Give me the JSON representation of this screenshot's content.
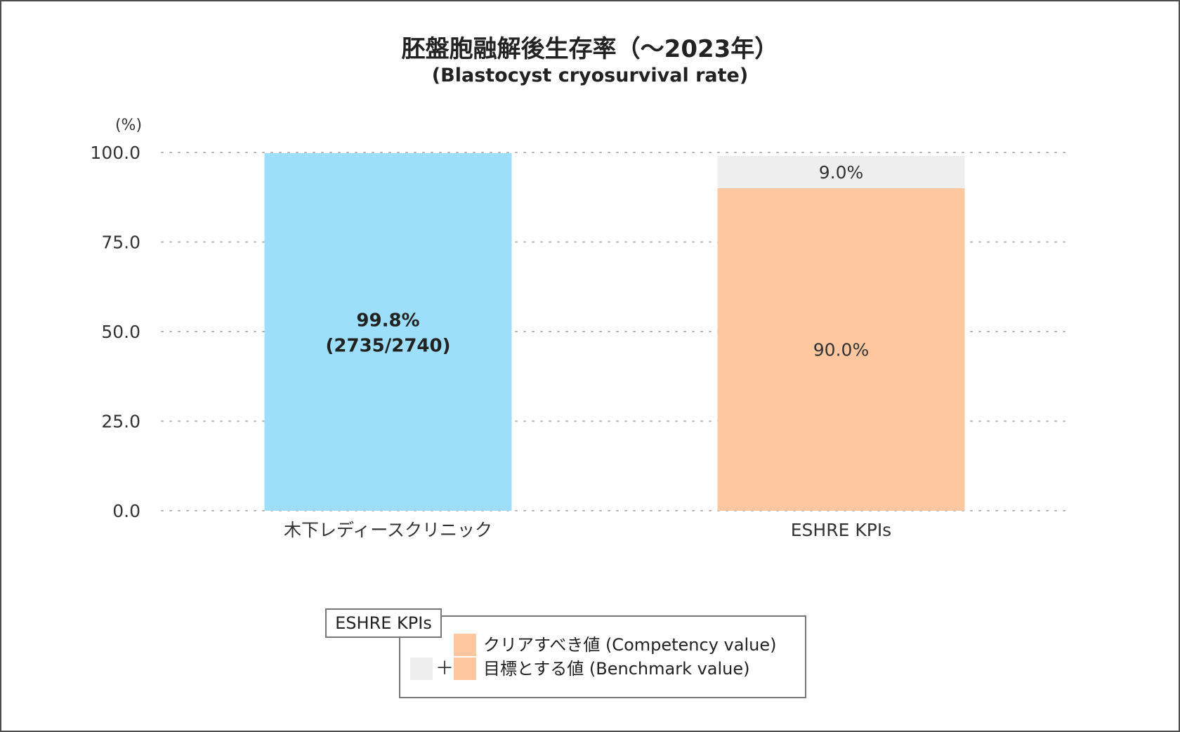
{
  "chart_data": {
    "type": "bar",
    "title": "胚盤胞融解後生存率（〜2023年）",
    "subtitle": "(Blastocyst cryosurvival rate)",
    "ylabel": "(%)",
    "ylim": [
      0,
      100
    ],
    "yticks": [
      "0.0",
      "25.0",
      "50.0",
      "75.0",
      "100.0"
    ],
    "grid": true,
    "categories": [
      "木下レディースクリニック",
      "ESHRE KPIs"
    ],
    "bars": [
      {
        "category": "木下レディースクリニック",
        "segments": [
          {
            "name": "clinic",
            "value": 99.8,
            "color": "#9ddffa",
            "label": "99.8%",
            "sublabel": "(2735/2740)",
            "bold": true
          }
        ]
      },
      {
        "category": "ESHRE KPIs",
        "segments": [
          {
            "name": "competency",
            "value": 90.0,
            "color": "#ffc7a0",
            "label": "90.0%",
            "sublabel": "",
            "bold": false
          },
          {
            "name": "benchmark-extra",
            "value": 9.0,
            "color": "#eeeeee",
            "label": "9.0%",
            "sublabel": "",
            "bold": false
          }
        ]
      }
    ]
  },
  "legend": {
    "tab_label": "ESHRE KPIs",
    "competency_label": "クリアすべき値 (Competency value)",
    "benchmark_label": "目標とする値 (Benchmark value)",
    "plus": "＋",
    "competency_color": "#ffc7a0",
    "benchmark_color": "#eeeeee"
  }
}
